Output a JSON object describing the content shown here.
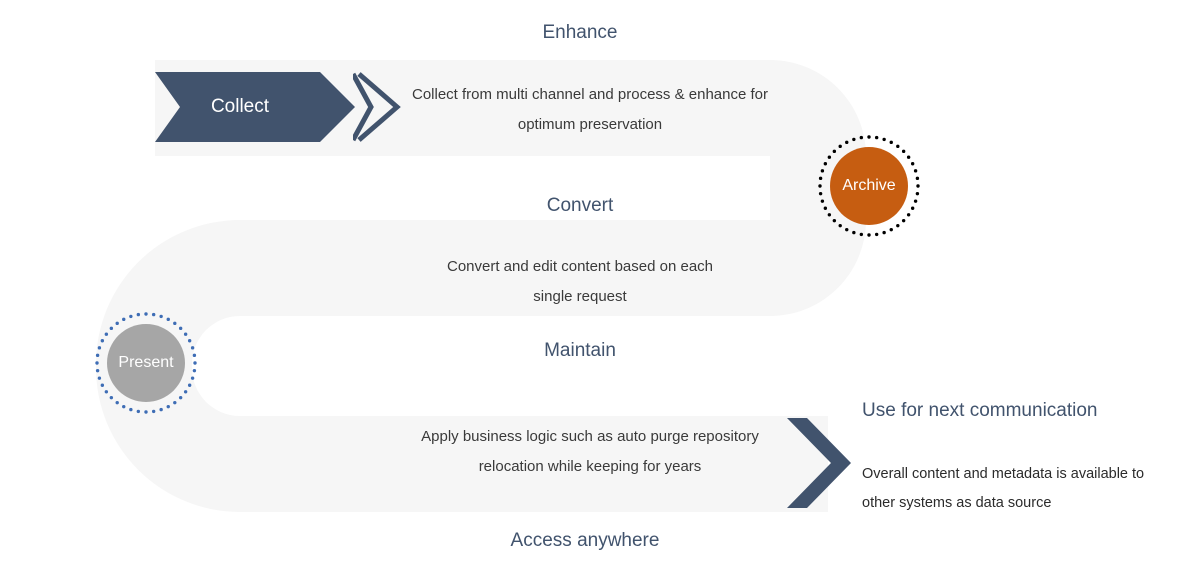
{
  "type": "infographic",
  "background_color": "#ffffff",
  "serpentine_path": {
    "fill": "#f6f6f6",
    "opacity": 1.0,
    "track_width": 96,
    "segments": [
      "right",
      "u-turn-right",
      "left",
      "u-turn-left",
      "right"
    ]
  },
  "headings": {
    "enhance": "Enhance",
    "convert": "Convert",
    "maintain": "Maintain",
    "access": "Access anywhere",
    "color": "#41536d",
    "fontsize": 19
  },
  "body": {
    "enhance": "Collect from multi channel and process & enhance for optimum preservation",
    "convert": "Convert and edit content based on each single request",
    "maintain": "Apply business logic such as auto purge repository relocation while keeping for years",
    "color": "#3a3a3a",
    "fontsize": 15
  },
  "collect": {
    "label": "Collect",
    "fill": "#41536d",
    "text_color": "#ffffff",
    "fontsize": 19,
    "outline_stroke": "#41536d",
    "outline_stroke_width": 2
  },
  "archive": {
    "label": "Archive",
    "fill": "#c65d11",
    "text_color": "#ffffff",
    "dot_color": "#000000",
    "dot_radius": 1.7,
    "ring_radius": 49,
    "dot_count": 40,
    "fontsize": 16
  },
  "present": {
    "label": "Present",
    "fill": "#a6a6a6",
    "text_color": "#ffffff",
    "dot_color": "#3e6db5",
    "dot_radius": 1.7,
    "ring_radius": 49,
    "dot_count": 40,
    "fontsize": 16
  },
  "big_chevron": {
    "fill": "#41536d"
  },
  "right_panel": {
    "heading": "Use for next communication",
    "body": "Overall content and metadata is available to other systems as data source",
    "heading_color": "#41536d",
    "heading_fontsize": 19,
    "body_color": "#2b2b2b",
    "body_fontsize": 14.5
  }
}
